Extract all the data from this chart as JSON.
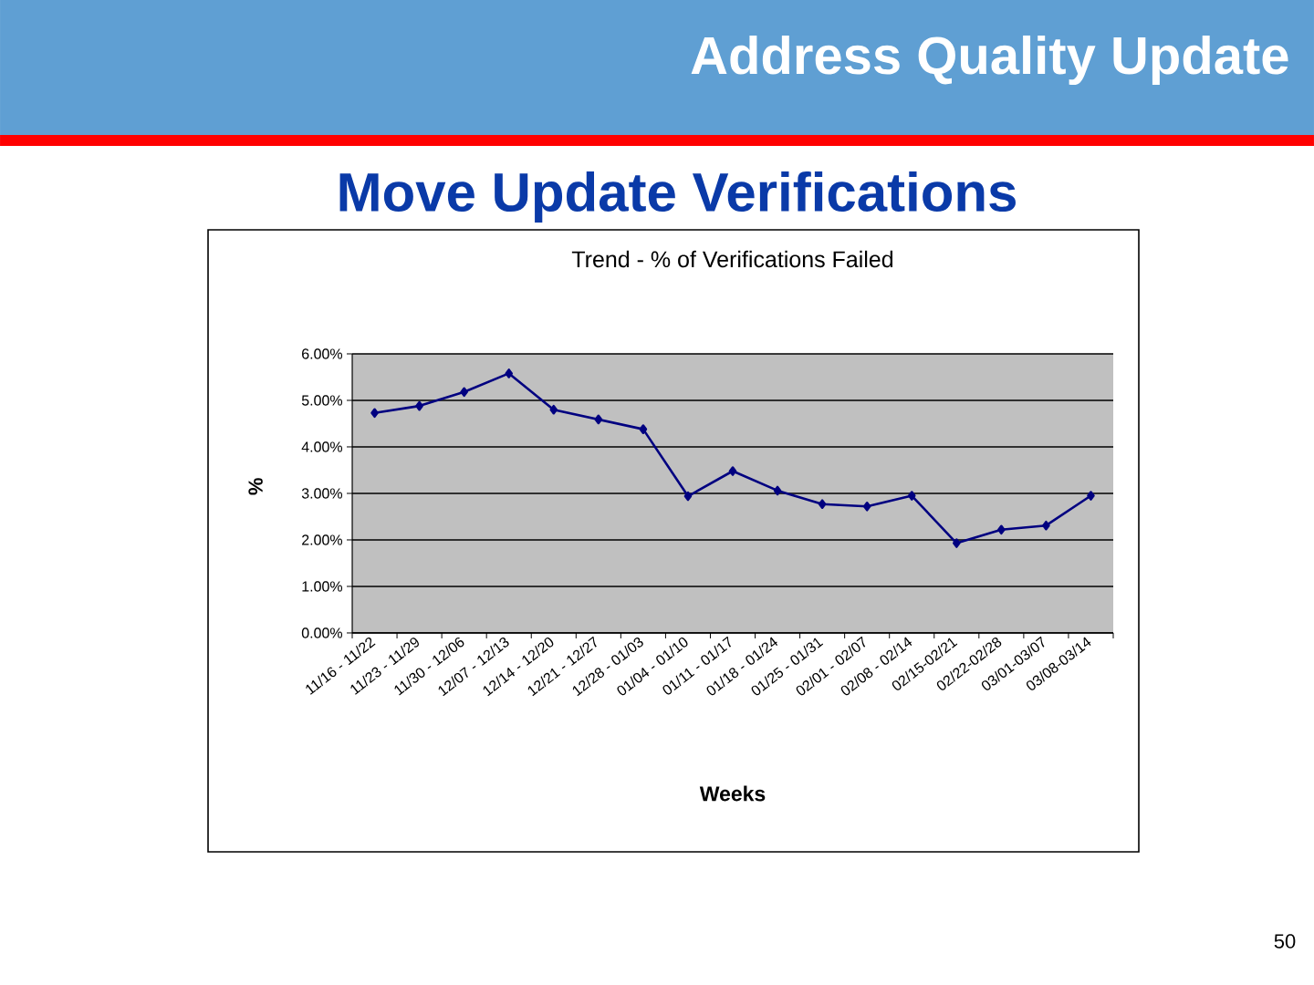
{
  "chart_data": {
    "type": "line",
    "title": "Move Update Verifications",
    "subtitle": "Trend - % of Verifications Failed",
    "xlabel": "Weeks",
    "ylabel": "%",
    "annotations": [
      "Address Quality Update",
      "50"
    ],
    "categories": [
      "11/16 - 11/22",
      "11/23 - 11/29",
      "11/30 - 12/06",
      "12/07 - 12/13",
      "12/14 - 12/20",
      "12/21 - 12/27",
      "12/28 - 01/03",
      "01/04 - 01/10",
      "01/11 - 01/17",
      "01/18 - 01/24",
      "01/25 - 01/31",
      "02/01 - 02/07",
      "02/08 - 02/14",
      "02/15-02/21",
      "02/22-02/28",
      "03/01-03/07",
      "03/08-03/14"
    ],
    "series": [
      {
        "color": "#000080",
        "values": [
          4.73,
          4.88,
          5.18,
          5.58,
          4.8,
          4.59,
          4.38,
          2.94,
          3.48,
          3.06,
          2.77,
          2.72,
          2.95,
          1.93,
          2.22,
          2.31,
          2.95
        ]
      }
    ],
    "ylim": [
      0,
      6
    ],
    "yticks": [
      {
        "value": 0,
        "label": "0.00%"
      },
      {
        "value": 1,
        "label": "1.00%"
      },
      {
        "value": 2,
        "label": "2.00%"
      },
      {
        "value": 3,
        "label": "3.00%"
      },
      {
        "value": 4,
        "label": "4.00%"
      },
      {
        "value": 5,
        "label": "5.00%"
      },
      {
        "value": 6,
        "label": "6.00%"
      }
    ],
    "grid": "y",
    "marker": "diamond",
    "line_style": "solid"
  }
}
